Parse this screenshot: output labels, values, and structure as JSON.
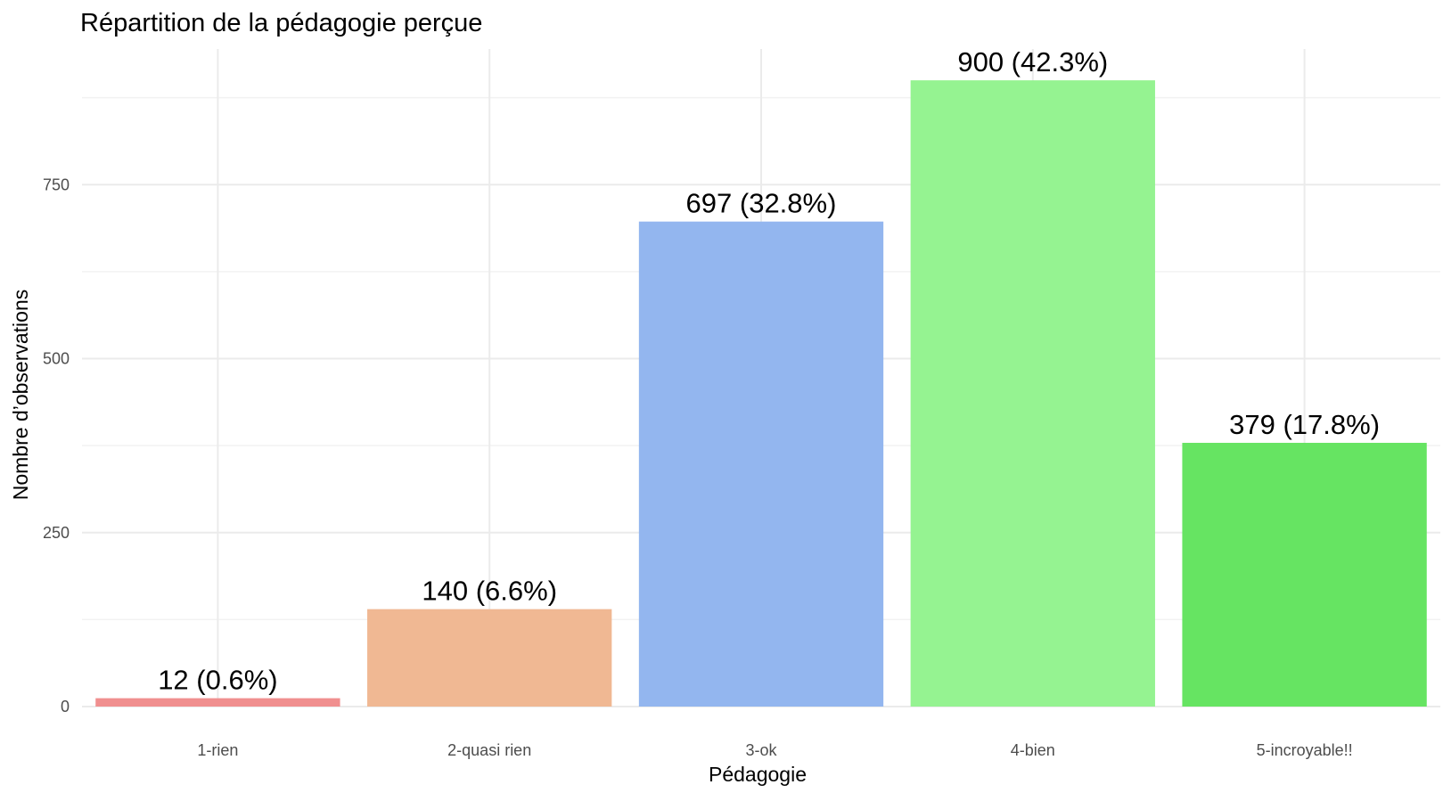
{
  "chart_data": {
    "type": "bar",
    "title": "Répartition de la pédagogie perçue",
    "xlabel": "Pédagogie",
    "ylabel": "Nombre d’observations",
    "categories": [
      "1-rien",
      "2-quasi rien",
      "3-ok",
      "4-bien",
      "5-incroyable!!"
    ],
    "values": [
      12,
      140,
      697,
      900,
      379
    ],
    "data_labels": [
      "12 (0.6%)",
      "140 (6.6%)",
      "697 (32.8%)",
      "900 (42.3%)",
      "379 (17.8%)"
    ],
    "colors": [
      "#f08f8f",
      "#f0b893",
      "#93b6ef",
      "#95f391",
      "#66e462"
    ],
    "ylim": [
      0,
      945
    ],
    "yticks": [
      0,
      250,
      500,
      750
    ],
    "grid": true,
    "legend": "none"
  }
}
